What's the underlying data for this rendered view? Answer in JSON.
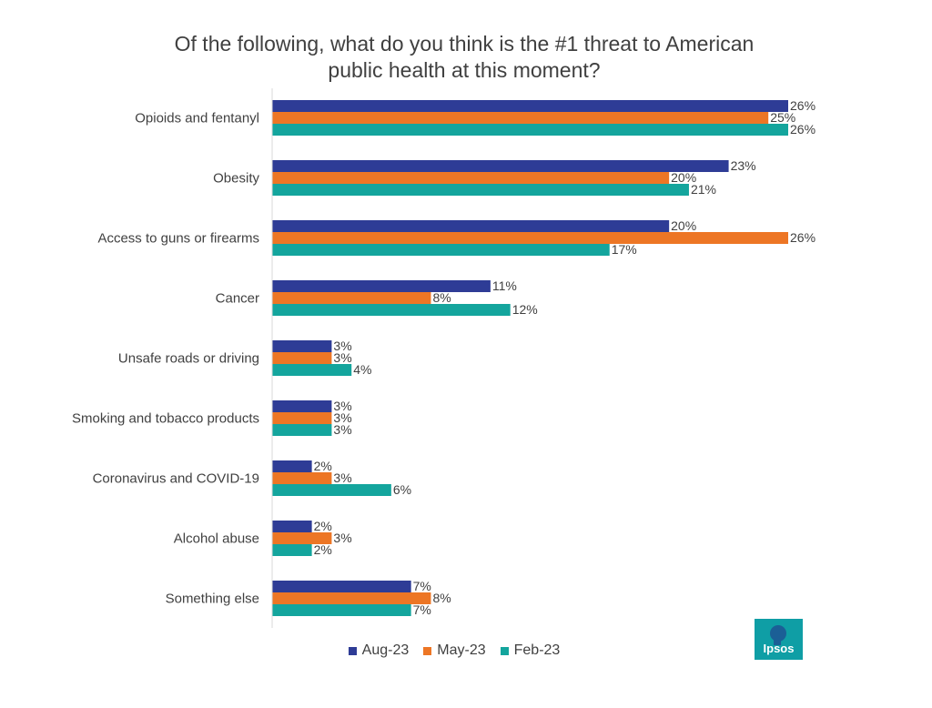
{
  "title_lines": [
    "Of the following,  what do you think is the #1 threat to American",
    "public health at this moment?"
  ],
  "colors": {
    "aug": "#2e3c96",
    "may": "#ed7625",
    "feb": "#14a59d"
  },
  "legend": [
    {
      "label": "Aug-23",
      "color": "#2e3c96"
    },
    {
      "label": "May-23",
      "color": "#ed7625"
    },
    {
      "label": "Feb-23",
      "color": "#14a59d"
    }
  ],
  "logo_text": "Ipsos",
  "chart_data": {
    "type": "bar",
    "orientation": "horizontal",
    "title": "Of the following,  what do you think is the #1 threat to American public health at this moment?",
    "categories": [
      "Opioids and fentanyl",
      "Obesity",
      "Access to guns or firearms",
      "Cancer",
      "Unsafe roads or driving",
      "Smoking and tobacco products",
      "Coronavirus and COVID-19",
      "Alcohol abuse",
      "Something else"
    ],
    "series": [
      {
        "name": "Aug-23",
        "color": "#2e3c96",
        "values": [
          26,
          23,
          20,
          11,
          3,
          3,
          2,
          2,
          7
        ]
      },
      {
        "name": "May-23",
        "color": "#ed7625",
        "values": [
          25,
          20,
          26,
          8,
          3,
          3,
          3,
          3,
          8
        ]
      },
      {
        "name": "Feb-23",
        "color": "#14a59d",
        "values": [
          26,
          21,
          17,
          12,
          4,
          3,
          6,
          2,
          7
        ]
      }
    ],
    "value_suffix": "%",
    "xlim": [
      0,
      26
    ],
    "legend_position": "bottom",
    "grid": false
  }
}
